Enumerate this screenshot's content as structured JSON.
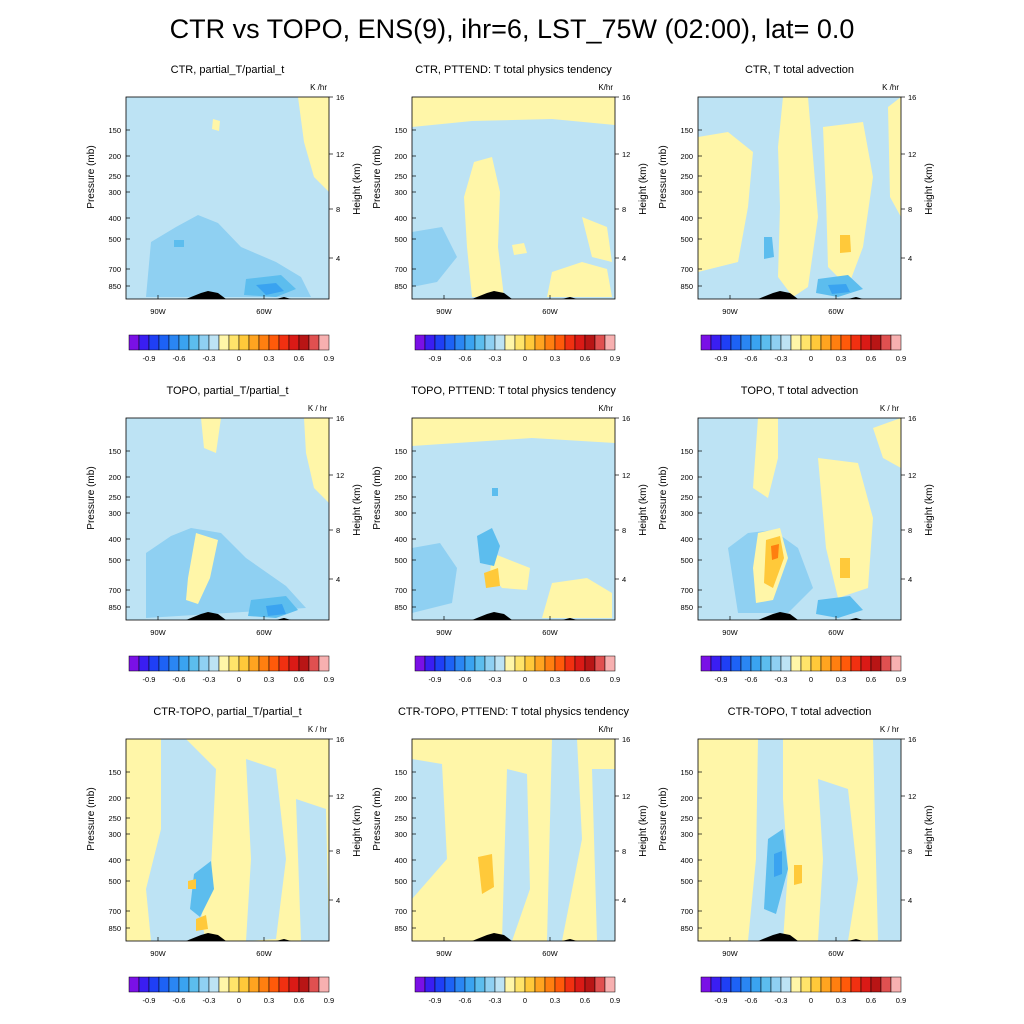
{
  "title": "CTR vs TOPO, ENS(9), ihr=6, LST_75W (02:00), lat=  0.0",
  "colors": {
    "background": "#bde3f4",
    "positive_pale": "#fff6a8",
    "terrain": "#000000"
  },
  "shared": {
    "ylabel_left": "Pressure (mb)",
    "ylabel_right": "Height (km)",
    "pressure_ticks": [
      "150",
      "200",
      "250",
      "300",
      "400",
      "500",
      "700",
      "850"
    ],
    "height_ticks": [
      "4",
      "8",
      "12",
      "16"
    ],
    "x_ticks": [
      "90W",
      "60W"
    ]
  },
  "colorbar": {
    "tick_labels": [
      "-0.9",
      "-0.6",
      "-0.3",
      "0",
      "0.3",
      "0.6",
      "0.9"
    ],
    "colors": [
      "#7a10e6",
      "#3a1ef2",
      "#1f3ff5",
      "#1d62f5",
      "#2a86f3",
      "#3aa3f0",
      "#5cbdee",
      "#8fd0f2",
      "#bde3f4",
      "#fff6a8",
      "#ffe46a",
      "#ffc93a",
      "#ffa420",
      "#ff7f10",
      "#ff5a0a",
      "#f13011",
      "#da1a16",
      "#b81515",
      "#e05050",
      "#f7b0b0"
    ]
  },
  "chart_data": [
    {
      "type": "heatmap",
      "title": "CTR, partial_T/partial_t",
      "units": "K /hr"
    },
    {
      "type": "heatmap",
      "title": "CTR, PTTEND: T total physics tendency",
      "units": "K/hr"
    },
    {
      "type": "heatmap",
      "title": "CTR, T total advection",
      "units": "K /hr"
    },
    {
      "type": "heatmap",
      "title": "TOPO, partial_T/partial_t",
      "units": "K / hr"
    },
    {
      "type": "heatmap",
      "title": "TOPO, PTTEND: T total physics tendency",
      "units": "K/hr"
    },
    {
      "type": "heatmap",
      "title": "TOPO, T total advection",
      "units": "K / hr"
    },
    {
      "type": "heatmap",
      "title": "CTR-TOPO, partial_T/partial_t",
      "units": "K / hr"
    },
    {
      "type": "heatmap",
      "title": "CTR-TOPO, PTTEND: T total physics tendency",
      "units": "K/hr"
    },
    {
      "type": "heatmap",
      "title": "CTR-TOPO, T total advection",
      "units": "K / hr"
    }
  ]
}
